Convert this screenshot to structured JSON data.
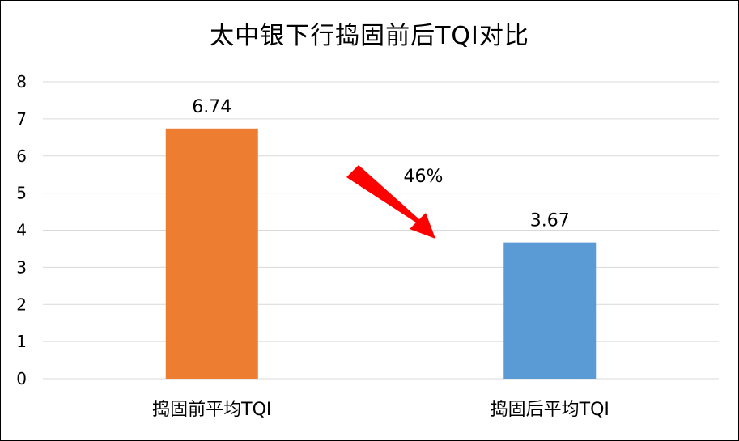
{
  "chart_data": {
    "type": "bar",
    "title": "太中银下行捣固前后TQI对比",
    "categories": [
      "捣固前平均TQI",
      "捣固后平均TQI"
    ],
    "values": [
      6.74,
      3.67
    ],
    "data_labels": [
      "6.74",
      "3.67"
    ],
    "colors": [
      "#ED7D31",
      "#5B9BD5"
    ],
    "ylim": [
      0,
      8
    ],
    "yticks": [
      "0",
      "1",
      "2",
      "3",
      "4",
      "5",
      "6",
      "7",
      "8"
    ],
    "grid": true,
    "annotation": {
      "text": "46%",
      "arrow_color": "#FF0000"
    }
  }
}
